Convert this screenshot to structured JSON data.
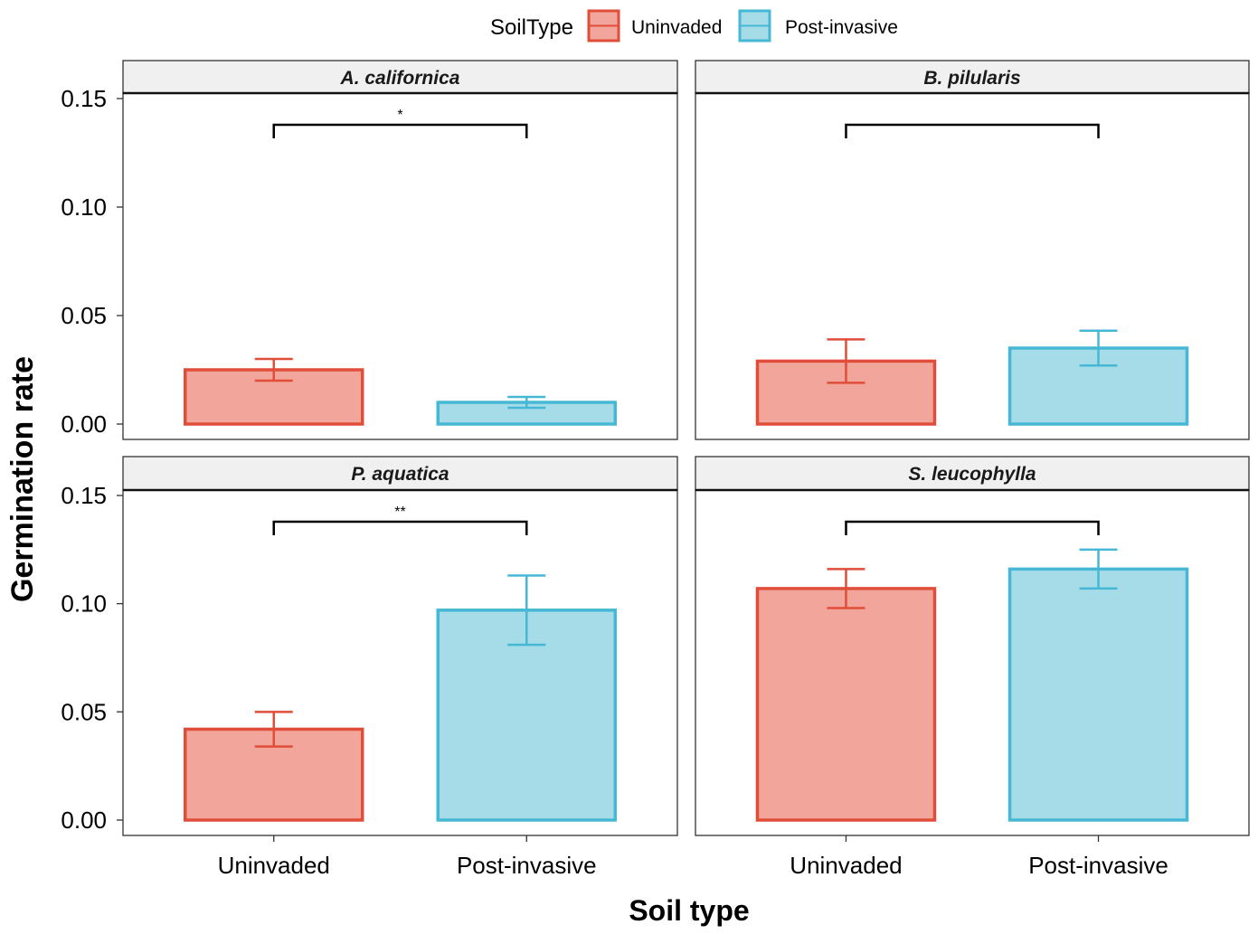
{
  "legend": {
    "title": "SoilType",
    "placement": "top",
    "items": [
      {
        "label": "Uninvaded",
        "fill": "#f2a59a",
        "stroke": "#e04e39"
      },
      {
        "label": "Post-invasive",
        "fill": "#a5dce8",
        "stroke": "#46b8d6"
      }
    ]
  },
  "axes": {
    "xlabel": "Soil type",
    "ylabel": "Germination rate",
    "yticks": [
      "0.00",
      "0.05",
      "0.10",
      "0.15"
    ]
  },
  "chart_data": {
    "type": "bar",
    "faceted": true,
    "categories": [
      "Uninvaded",
      "Post-invasive"
    ],
    "ylim": [
      0,
      0.15
    ],
    "grid": false,
    "panels": [
      {
        "title": "A. californica",
        "values": [
          0.025,
          0.01
        ],
        "error": [
          [
            0.02,
            0.03
          ],
          [
            0.0075,
            0.0125
          ]
        ],
        "significance": "*"
      },
      {
        "title": "B. pilularis",
        "values": [
          0.029,
          0.035
        ],
        "error": [
          [
            0.019,
            0.039
          ],
          [
            0.027,
            0.043
          ]
        ],
        "significance": ""
      },
      {
        "title": "P. aquatica",
        "values": [
          0.042,
          0.097
        ],
        "error": [
          [
            0.034,
            0.05
          ],
          [
            0.081,
            0.113
          ]
        ],
        "significance": "**"
      },
      {
        "title": "S. leucophylla",
        "values": [
          0.107,
          0.116
        ],
        "error": [
          [
            0.098,
            0.116
          ],
          [
            0.107,
            0.125
          ]
        ],
        "significance": ""
      }
    ]
  }
}
